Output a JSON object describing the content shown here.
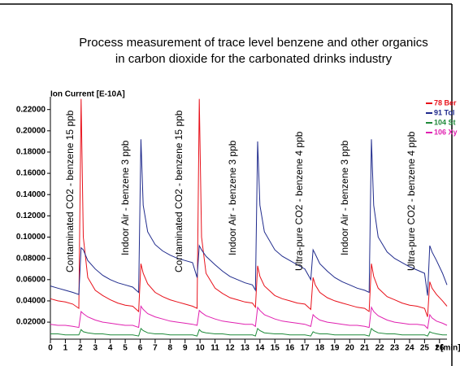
{
  "chart_data": {
    "type": "line",
    "title": "Process measurement of trace level benzene and other organics",
    "subtitle": "in carbon dioxide for the carbonated drinks industry",
    "y_label": "Ion Current [E-10A]",
    "x_label": "t [min]",
    "annotations": [
      "Contaminated CO2 - benzene 15 ppb",
      "Indoor Air - benzene 3 ppb",
      "Contaminated CO2 - benzene 15 ppb",
      "Indoor Air - benzene 3 ppb",
      "Ultra-pure CO2 - benzene 4 ppb",
      "Indoor Air - benzene 3 ppb",
      "Ultra-pure CO2 - benzene 4 ppb"
    ],
    "xlim": [
      0,
      26.5
    ],
    "xticks": [
      0,
      1,
      2,
      3,
      4,
      5,
      6,
      7,
      8,
      9,
      10,
      11,
      12,
      13,
      14,
      15,
      16,
      17,
      18,
      19,
      20,
      21,
      22,
      23,
      24,
      25,
      26
    ],
    "ylim": [
      0.004,
      0.232
    ],
    "yticks": [
      {
        "value": 0.02,
        "label": "0.02000"
      },
      {
        "value": 0.04,
        "label": "0.04000"
      },
      {
        "value": 0.06,
        "label": "0.06000"
      },
      {
        "value": 0.08,
        "label": "0.08000"
      },
      {
        "value": 0.1,
        "label": "0.10000"
      },
      {
        "value": 0.12,
        "label": "0.12000"
      },
      {
        "value": 0.14,
        "label": "0.14000"
      },
      {
        "value": 0.16,
        "label": "0.16000"
      },
      {
        "value": 0.18,
        "label": "0.18000"
      },
      {
        "value": 0.2,
        "label": "0.20000"
      },
      {
        "value": 0.22,
        "label": "0.22000"
      }
    ],
    "grid": false,
    "legend": "right",
    "x": [
      0,
      0.5,
      1,
      1.5,
      1.9,
      2.05,
      2.2,
      2.5,
      3,
      3.5,
      4,
      4.5,
      5,
      5.5,
      5.9,
      6.05,
      6.2,
      6.5,
      7,
      7.5,
      8,
      8.5,
      9,
      9.5,
      9.8,
      9.95,
      10.1,
      10.4,
      11,
      11.5,
      12,
      12.5,
      13,
      13.5,
      13.7,
      13.85,
      14,
      14.3,
      15,
      15.5,
      16,
      16.5,
      17,
      17.4,
      17.55,
      17.7,
      18,
      18.5,
      19,
      19.5,
      20,
      20.5,
      21,
      21.3,
      21.45,
      21.6,
      21.9,
      22.5,
      23,
      23.5,
      24,
      24.5,
      25,
      25.2,
      25.35,
      25.5,
      25.8,
      26.2,
      26.5
    ],
    "series": [
      {
        "name": "78 Ber",
        "color": "#e8101a",
        "values": [
          0.042,
          0.04,
          0.039,
          0.037,
          0.033,
          0.23,
          0.1,
          0.062,
          0.05,
          0.045,
          0.041,
          0.038,
          0.036,
          0.035,
          0.03,
          0.075,
          0.066,
          0.056,
          0.048,
          0.044,
          0.041,
          0.039,
          0.037,
          0.035,
          0.033,
          0.23,
          0.1,
          0.066,
          0.052,
          0.047,
          0.043,
          0.041,
          0.039,
          0.038,
          0.034,
          0.073,
          0.063,
          0.054,
          0.045,
          0.042,
          0.04,
          0.038,
          0.037,
          0.032,
          0.062,
          0.055,
          0.048,
          0.043,
          0.04,
          0.038,
          0.036,
          0.034,
          0.033,
          0.03,
          0.075,
          0.063,
          0.052,
          0.044,
          0.041,
          0.038,
          0.036,
          0.035,
          0.033,
          0.025,
          0.058,
          0.052,
          0.046,
          0.04,
          0.035
        ]
      },
      {
        "name": "91 Tol",
        "color": "#1f2a8c",
        "values": [
          0.054,
          0.052,
          0.05,
          0.048,
          0.046,
          0.09,
          0.088,
          0.078,
          0.07,
          0.064,
          0.06,
          0.057,
          0.055,
          0.053,
          0.048,
          0.192,
          0.13,
          0.105,
          0.093,
          0.087,
          0.083,
          0.08,
          0.078,
          0.076,
          0.062,
          0.092,
          0.088,
          0.082,
          0.074,
          0.068,
          0.063,
          0.06,
          0.057,
          0.055,
          0.05,
          0.19,
          0.13,
          0.105,
          0.088,
          0.082,
          0.078,
          0.074,
          0.07,
          0.06,
          0.088,
          0.084,
          0.075,
          0.068,
          0.062,
          0.058,
          0.055,
          0.052,
          0.05,
          0.048,
          0.192,
          0.13,
          0.1,
          0.086,
          0.08,
          0.076,
          0.072,
          0.069,
          0.066,
          0.045,
          0.092,
          0.086,
          0.078,
          0.066,
          0.055
        ]
      },
      {
        "name": "104 St",
        "color": "#1e8a3a",
        "values": [
          0.009,
          0.009,
          0.008,
          0.008,
          0.008,
          0.013,
          0.011,
          0.01,
          0.009,
          0.009,
          0.008,
          0.008,
          0.008,
          0.008,
          0.007,
          0.014,
          0.012,
          0.01,
          0.009,
          0.009,
          0.008,
          0.008,
          0.008,
          0.008,
          0.007,
          0.013,
          0.011,
          0.01,
          0.009,
          0.009,
          0.008,
          0.008,
          0.008,
          0.008,
          0.007,
          0.014,
          0.012,
          0.01,
          0.009,
          0.009,
          0.008,
          0.008,
          0.008,
          0.007,
          0.011,
          0.01,
          0.009,
          0.009,
          0.008,
          0.008,
          0.008,
          0.008,
          0.008,
          0.007,
          0.014,
          0.012,
          0.01,
          0.009,
          0.009,
          0.008,
          0.008,
          0.008,
          0.008,
          0.007,
          0.011,
          0.01,
          0.009,
          0.008,
          0.008
        ]
      },
      {
        "name": "106 Xy",
        "color": "#e020b0",
        "values": [
          0.018,
          0.017,
          0.017,
          0.016,
          0.015,
          0.03,
          0.028,
          0.025,
          0.022,
          0.02,
          0.019,
          0.018,
          0.017,
          0.017,
          0.015,
          0.035,
          0.032,
          0.028,
          0.025,
          0.023,
          0.021,
          0.02,
          0.019,
          0.018,
          0.017,
          0.031,
          0.029,
          0.026,
          0.023,
          0.021,
          0.02,
          0.019,
          0.018,
          0.018,
          0.016,
          0.034,
          0.031,
          0.027,
          0.023,
          0.021,
          0.02,
          0.019,
          0.018,
          0.016,
          0.027,
          0.025,
          0.022,
          0.02,
          0.019,
          0.018,
          0.017,
          0.017,
          0.016,
          0.015,
          0.034,
          0.03,
          0.026,
          0.022,
          0.02,
          0.019,
          0.018,
          0.018,
          0.017,
          0.014,
          0.027,
          0.024,
          0.021,
          0.019,
          0.017
        ]
      }
    ]
  }
}
